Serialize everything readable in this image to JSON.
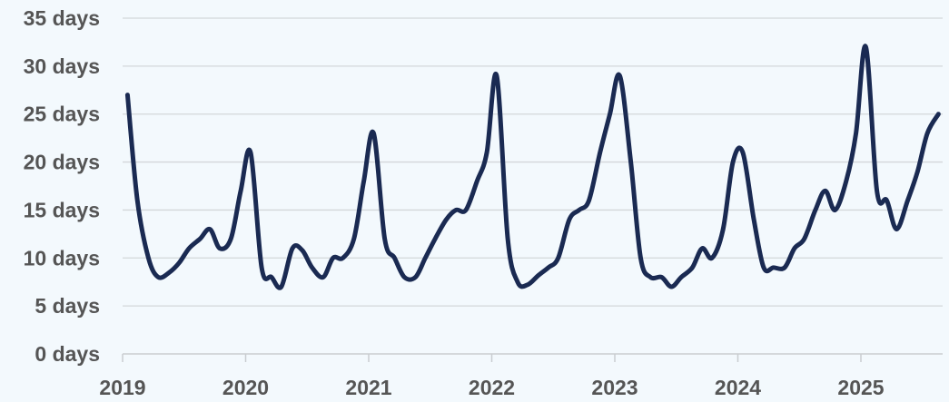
{
  "chart_data": {
    "type": "line",
    "title": "",
    "xlabel": "",
    "ylabel": "",
    "x_unit": "year",
    "x_ticks": [
      "2019",
      "2020",
      "2021",
      "2022",
      "2023",
      "2024",
      "2025"
    ],
    "y_ticks": [
      "0 days",
      "5 days",
      "10 days",
      "15 days",
      "20 days",
      "25 days",
      "30 days",
      "35 days"
    ],
    "xlim": [
      2019,
      2025.67
    ],
    "ylim": [
      0,
      35
    ],
    "grid": "horizontal",
    "legend": "none",
    "series": [
      {
        "color": "#1a2a52",
        "points": [
          [
            2019.04,
            27
          ],
          [
            2019.12,
            16
          ],
          [
            2019.21,
            10
          ],
          [
            2019.29,
            8
          ],
          [
            2019.38,
            8.5
          ],
          [
            2019.46,
            9.5
          ],
          [
            2019.54,
            11
          ],
          [
            2019.63,
            12
          ],
          [
            2019.71,
            13
          ],
          [
            2019.79,
            11
          ],
          [
            2019.88,
            12
          ],
          [
            2019.96,
            17
          ],
          [
            2020.04,
            21
          ],
          [
            2020.13,
            9
          ],
          [
            2020.21,
            8
          ],
          [
            2020.29,
            7
          ],
          [
            2020.38,
            11
          ],
          [
            2020.46,
            10.8
          ],
          [
            2020.54,
            9
          ],
          [
            2020.63,
            8
          ],
          [
            2020.71,
            10
          ],
          [
            2020.79,
            10
          ],
          [
            2020.88,
            12
          ],
          [
            2020.96,
            18
          ],
          [
            2021.04,
            23
          ],
          [
            2021.13,
            12
          ],
          [
            2021.21,
            10
          ],
          [
            2021.29,
            8
          ],
          [
            2021.38,
            8
          ],
          [
            2021.46,
            10
          ],
          [
            2021.54,
            12
          ],
          [
            2021.63,
            14
          ],
          [
            2021.71,
            15
          ],
          [
            2021.79,
            15
          ],
          [
            2021.88,
            18
          ],
          [
            2021.96,
            21
          ],
          [
            2022.04,
            29
          ],
          [
            2022.13,
            12
          ],
          [
            2022.21,
            7.5
          ],
          [
            2022.29,
            7.2
          ],
          [
            2022.38,
            8.2
          ],
          [
            2022.46,
            9
          ],
          [
            2022.54,
            10
          ],
          [
            2022.63,
            14
          ],
          [
            2022.71,
            15
          ],
          [
            2022.79,
            16
          ],
          [
            2022.88,
            21
          ],
          [
            2022.96,
            25
          ],
          [
            2023.04,
            29
          ],
          [
            2023.13,
            20
          ],
          [
            2023.21,
            10
          ],
          [
            2023.29,
            8
          ],
          [
            2023.38,
            8
          ],
          [
            2023.46,
            7
          ],
          [
            2023.54,
            8
          ],
          [
            2023.63,
            9
          ],
          [
            2023.71,
            11
          ],
          [
            2023.79,
            10
          ],
          [
            2023.88,
            13
          ],
          [
            2023.96,
            20
          ],
          [
            2024.04,
            21
          ],
          [
            2024.13,
            14
          ],
          [
            2024.21,
            9
          ],
          [
            2024.29,
            9
          ],
          [
            2024.38,
            9
          ],
          [
            2024.46,
            11
          ],
          [
            2024.54,
            12
          ],
          [
            2024.63,
            15
          ],
          [
            2024.71,
            17
          ],
          [
            2024.79,
            15
          ],
          [
            2024.88,
            18
          ],
          [
            2024.96,
            23
          ],
          [
            2025.04,
            32
          ],
          [
            2025.13,
            17
          ],
          [
            2025.21,
            16
          ],
          [
            2025.29,
            13
          ],
          [
            2025.38,
            16
          ],
          [
            2025.46,
            19
          ],
          [
            2025.54,
            23
          ],
          [
            2025.63,
            25
          ]
        ]
      }
    ]
  }
}
